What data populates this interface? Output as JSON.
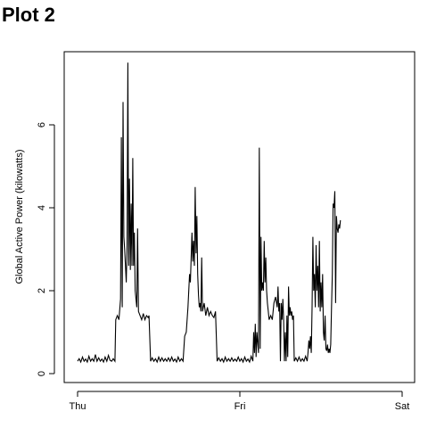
{
  "page": {
    "title": "Plot 2"
  },
  "chart_data": {
    "type": "line",
    "title": "",
    "xlabel": "",
    "ylabel": "Global Active Power (kilowatts)",
    "x_ticks": [
      "Thu",
      "Fri",
      "Sat"
    ],
    "x_range_days": [
      0,
      2
    ],
    "ylim": [
      -0.1,
      7.7
    ],
    "y_ticks": [
      0,
      2,
      4,
      6
    ],
    "grid": false,
    "legend": "none",
    "series": [
      {
        "color": "#000000",
        "points": [
          [
            0.0,
            0.3
          ],
          [
            0.01,
            0.36
          ],
          [
            0.02,
            0.28
          ],
          [
            0.03,
            0.4
          ],
          [
            0.04,
            0.3
          ],
          [
            0.05,
            0.35
          ],
          [
            0.06,
            0.28
          ],
          [
            0.07,
            0.42
          ],
          [
            0.08,
            0.3
          ],
          [
            0.09,
            0.36
          ],
          [
            0.1,
            0.3
          ],
          [
            0.11,
            0.46
          ],
          [
            0.12,
            0.3
          ],
          [
            0.13,
            0.38
          ],
          [
            0.14,
            0.3
          ],
          [
            0.15,
            0.35
          ],
          [
            0.16,
            0.28
          ],
          [
            0.17,
            0.4
          ],
          [
            0.18,
            0.3
          ],
          [
            0.19,
            0.44
          ],
          [
            0.2,
            0.32
          ],
          [
            0.21,
            0.3
          ],
          [
            0.22,
            0.36
          ],
          [
            0.23,
            0.3
          ],
          [
            0.235,
            1.3
          ],
          [
            0.245,
            1.4
          ],
          [
            0.255,
            1.3
          ],
          [
            0.265,
            1.8
          ],
          [
            0.27,
            5.7
          ],
          [
            0.275,
            1.6
          ],
          [
            0.28,
            6.55
          ],
          [
            0.285,
            3.3
          ],
          [
            0.29,
            3.0
          ],
          [
            0.295,
            2.6
          ],
          [
            0.3,
            2.2
          ],
          [
            0.305,
            3.1
          ],
          [
            0.31,
            7.5
          ],
          [
            0.315,
            2.6
          ],
          [
            0.32,
            4.7
          ],
          [
            0.325,
            2.5
          ],
          [
            0.33,
            4.1
          ],
          [
            0.335,
            2.6
          ],
          [
            0.34,
            5.2
          ],
          [
            0.345,
            2.6
          ],
          [
            0.35,
            3.4
          ],
          [
            0.355,
            2.0
          ],
          [
            0.36,
            1.8
          ],
          [
            0.365,
            1.6
          ],
          [
            0.37,
            3.5
          ],
          [
            0.375,
            1.5
          ],
          [
            0.385,
            1.4
          ],
          [
            0.395,
            1.3
          ],
          [
            0.405,
            1.45
          ],
          [
            0.415,
            1.3
          ],
          [
            0.425,
            1.4
          ],
          [
            0.435,
            1.35
          ],
          [
            0.44,
            1.4
          ],
          [
            0.45,
            0.3
          ],
          [
            0.46,
            0.38
          ],
          [
            0.47,
            0.3
          ],
          [
            0.48,
            0.36
          ],
          [
            0.49,
            0.28
          ],
          [
            0.5,
            0.4
          ],
          [
            0.51,
            0.3
          ],
          [
            0.52,
            0.38
          ],
          [
            0.53,
            0.3
          ],
          [
            0.54,
            0.36
          ],
          [
            0.55,
            0.3
          ],
          [
            0.56,
            0.38
          ],
          [
            0.57,
            0.3
          ],
          [
            0.58,
            0.4
          ],
          [
            0.59,
            0.3
          ],
          [
            0.6,
            0.35
          ],
          [
            0.61,
            0.28
          ],
          [
            0.62,
            0.4
          ],
          [
            0.63,
            0.3
          ],
          [
            0.64,
            0.36
          ],
          [
            0.65,
            0.3
          ],
          [
            0.66,
            0.9
          ],
          [
            0.67,
            1.0
          ],
          [
            0.68,
            1.6
          ],
          [
            0.69,
            2.4
          ],
          [
            0.695,
            2.2
          ],
          [
            0.7,
            2.8
          ],
          [
            0.705,
            3.4
          ],
          [
            0.71,
            2.7
          ],
          [
            0.715,
            3.2
          ],
          [
            0.72,
            2.6
          ],
          [
            0.725,
            4.5
          ],
          [
            0.73,
            2.9
          ],
          [
            0.735,
            3.8
          ],
          [
            0.74,
            2.4
          ],
          [
            0.745,
            1.9
          ],
          [
            0.75,
            1.6
          ],
          [
            0.755,
            1.7
          ],
          [
            0.76,
            1.5
          ],
          [
            0.765,
            2.8
          ],
          [
            0.77,
            1.5
          ],
          [
            0.78,
            1.7
          ],
          [
            0.79,
            1.4
          ],
          [
            0.8,
            1.6
          ],
          [
            0.81,
            1.4
          ],
          [
            0.82,
            1.5
          ],
          [
            0.83,
            1.4
          ],
          [
            0.84,
            1.35
          ],
          [
            0.85,
            1.5
          ],
          [
            0.86,
            0.3
          ],
          [
            0.87,
            0.38
          ],
          [
            0.88,
            0.3
          ],
          [
            0.89,
            0.36
          ],
          [
            0.9,
            0.28
          ],
          [
            0.91,
            0.4
          ],
          [
            0.92,
            0.3
          ],
          [
            0.93,
            0.36
          ],
          [
            0.94,
            0.3
          ],
          [
            0.95,
            0.38
          ],
          [
            0.96,
            0.3
          ],
          [
            0.97,
            0.35
          ],
          [
            0.98,
            0.3
          ],
          [
            0.99,
            0.4
          ],
          [
            1.0,
            0.3
          ],
          [
            1.01,
            0.36
          ],
          [
            1.02,
            0.28
          ],
          [
            1.03,
            0.4
          ],
          [
            1.04,
            0.3
          ],
          [
            1.05,
            0.35
          ],
          [
            1.06,
            0.28
          ],
          [
            1.07,
            0.42
          ],
          [
            1.08,
            0.3
          ],
          [
            1.085,
            1.0
          ],
          [
            1.09,
            0.5
          ],
          [
            1.095,
            1.2
          ],
          [
            1.1,
            0.4
          ],
          [
            1.105,
            1.0
          ],
          [
            1.115,
            0.5
          ],
          [
            1.12,
            5.45
          ],
          [
            1.125,
            0.6
          ],
          [
            1.13,
            3.3
          ],
          [
            1.135,
            2.0
          ],
          [
            1.14,
            2.2
          ],
          [
            1.145,
            2.0
          ],
          [
            1.15,
            3.2
          ],
          [
            1.155,
            2.2
          ],
          [
            1.16,
            2.8
          ],
          [
            1.165,
            2.0
          ],
          [
            1.17,
            1.7
          ],
          [
            1.175,
            1.5
          ],
          [
            1.18,
            1.3
          ],
          [
            1.19,
            1.4
          ],
          [
            1.2,
            1.3
          ],
          [
            1.21,
            1.7
          ],
          [
            1.22,
            1.85
          ],
          [
            1.23,
            1.6
          ],
          [
            1.235,
            2.1
          ],
          [
            1.24,
            1.5
          ],
          [
            1.245,
            1.7
          ],
          [
            1.25,
            0.3
          ],
          [
            1.255,
            1.7
          ],
          [
            1.26,
            1.3
          ],
          [
            1.265,
            1.8
          ],
          [
            1.27,
            1.3
          ],
          [
            1.275,
            0.3
          ],
          [
            1.28,
            1.0
          ],
          [
            1.285,
            0.3
          ],
          [
            1.29,
            1.4
          ],
          [
            1.295,
            0.4
          ],
          [
            1.3,
            2.1
          ],
          [
            1.305,
            1.4
          ],
          [
            1.31,
            1.6
          ],
          [
            1.315,
            1.4
          ],
          [
            1.32,
            1.5
          ],
          [
            1.325,
            1.3
          ],
          [
            1.33,
            1.4
          ],
          [
            1.335,
            0.3
          ],
          [
            1.345,
            0.38
          ],
          [
            1.355,
            0.3
          ],
          [
            1.365,
            0.4
          ],
          [
            1.375,
            0.3
          ],
          [
            1.385,
            0.36
          ],
          [
            1.395,
            0.3
          ],
          [
            1.405,
            0.42
          ],
          [
            1.415,
            0.3
          ],
          [
            1.42,
            0.5
          ],
          [
            1.425,
            0.8
          ],
          [
            1.43,
            0.6
          ],
          [
            1.435,
            0.9
          ],
          [
            1.44,
            0.5
          ],
          [
            1.445,
            1.6
          ],
          [
            1.45,
            3.3
          ],
          [
            1.455,
            2.0
          ],
          [
            1.46,
            2.4
          ],
          [
            1.465,
            1.6
          ],
          [
            1.47,
            3.1
          ],
          [
            1.475,
            2.0
          ],
          [
            1.48,
            2.6
          ],
          [
            1.485,
            1.6
          ],
          [
            1.49,
            3.2
          ],
          [
            1.495,
            1.5
          ],
          [
            1.5,
            2.2
          ],
          [
            1.505,
            1.6
          ],
          [
            1.51,
            2.4
          ],
          [
            1.515,
            1.0
          ],
          [
            1.52,
            0.8
          ],
          [
            1.525,
            1.4
          ],
          [
            1.53,
            0.6
          ],
          [
            1.535,
            0.55
          ],
          [
            1.54,
            0.7
          ],
          [
            1.545,
            0.5
          ],
          [
            1.55,
            0.6
          ],
          [
            1.555,
            0.5
          ],
          [
            1.56,
            0.7
          ],
          [
            1.565,
            1.6
          ],
          [
            1.57,
            2.4
          ],
          [
            1.575,
            4.1
          ],
          [
            1.58,
            4.0
          ],
          [
            1.585,
            4.4
          ],
          [
            1.59,
            1.7
          ],
          [
            1.595,
            3.8
          ],
          [
            1.6,
            3.5
          ],
          [
            1.605,
            3.4
          ],
          [
            1.61,
            3.6
          ],
          [
            1.615,
            3.5
          ],
          [
            1.62,
            3.7
          ]
        ]
      }
    ]
  }
}
